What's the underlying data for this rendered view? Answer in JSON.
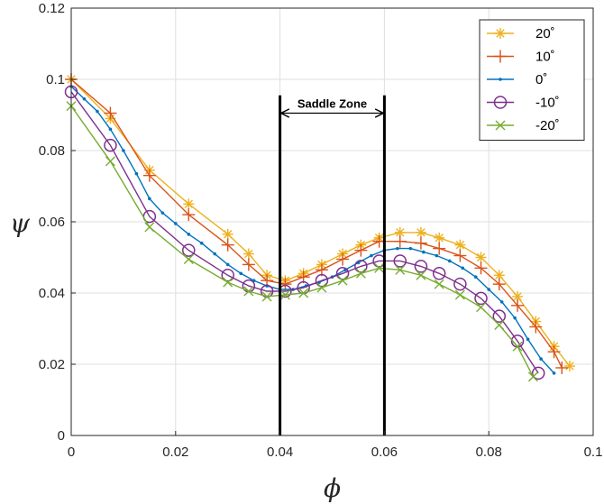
{
  "chart_data": {
    "type": "line",
    "title": "",
    "xlabel": "ϕ",
    "ylabel": "ψ",
    "xlim": [
      0,
      0.1
    ],
    "ylim": [
      0,
      0.12
    ],
    "xticks": [
      0,
      0.02,
      0.04,
      0.06,
      0.08,
      0.1
    ],
    "yticks": [
      0,
      0.02,
      0.04,
      0.06,
      0.08,
      0.1,
      0.12
    ],
    "xtick_labels": [
      "0",
      "0.02",
      "0.04",
      "0.06",
      "0.08",
      "0.1"
    ],
    "ytick_labels": [
      "0",
      "0.02",
      "0.04",
      "0.06",
      "0.08",
      "0.1",
      "0.12"
    ],
    "grid": true,
    "legend_position": "top-right",
    "series": [
      {
        "name": "20˚",
        "color": "#EDB120",
        "marker": "asterisk",
        "x": [
          0,
          0.0075,
          0.015,
          0.0225,
          0.03,
          0.034,
          0.0375,
          0.041,
          0.0445,
          0.048,
          0.052,
          0.0555,
          0.059,
          0.063,
          0.067,
          0.0705,
          0.0745,
          0.0785,
          0.082,
          0.0855,
          0.089,
          0.0925,
          0.0955
        ],
        "y": [
          0.1,
          0.089,
          0.0745,
          0.065,
          0.0565,
          0.051,
          0.045,
          0.0435,
          0.0455,
          0.048,
          0.051,
          0.0535,
          0.0555,
          0.057,
          0.057,
          0.0555,
          0.0535,
          0.05,
          0.045,
          0.039,
          0.032,
          0.025,
          0.0195
        ]
      },
      {
        "name": "10˚",
        "color": "#D95319",
        "marker": "plus",
        "x": [
          0,
          0.0075,
          0.015,
          0.0225,
          0.03,
          0.034,
          0.0375,
          0.041,
          0.0445,
          0.048,
          0.052,
          0.0555,
          0.059,
          0.063,
          0.067,
          0.0705,
          0.0745,
          0.0785,
          0.082,
          0.0855,
          0.089,
          0.0925,
          0.094
        ],
        "y": [
          0.1,
          0.0905,
          0.073,
          0.062,
          0.0535,
          0.048,
          0.0435,
          0.0425,
          0.0445,
          0.0465,
          0.0495,
          0.052,
          0.0545,
          0.0545,
          0.054,
          0.0525,
          0.0505,
          0.047,
          0.0425,
          0.0365,
          0.0305,
          0.0235,
          0.019
        ]
      },
      {
        "name": "0˚",
        "color": "#0072BD",
        "marker": "point",
        "x": [
          0,
          0.0025,
          0.005,
          0.0075,
          0.01,
          0.0125,
          0.015,
          0.0175,
          0.02,
          0.0225,
          0.025,
          0.0275,
          0.03,
          0.0325,
          0.035,
          0.0375,
          0.04,
          0.0425,
          0.045,
          0.0475,
          0.05,
          0.0525,
          0.055,
          0.0575,
          0.06,
          0.0625,
          0.065,
          0.0675,
          0.07,
          0.0725,
          0.075,
          0.0775,
          0.08,
          0.0825,
          0.085,
          0.0875,
          0.09,
          0.0925
        ],
        "y": [
          0.098,
          0.0945,
          0.091,
          0.086,
          0.08,
          0.0735,
          0.0665,
          0.0625,
          0.0595,
          0.0565,
          0.054,
          0.051,
          0.048,
          0.0455,
          0.0435,
          0.042,
          0.041,
          0.041,
          0.042,
          0.043,
          0.0445,
          0.0465,
          0.0485,
          0.0505,
          0.052,
          0.0525,
          0.0525,
          0.0515,
          0.0505,
          0.049,
          0.047,
          0.0445,
          0.041,
          0.0375,
          0.033,
          0.027,
          0.0215,
          0.0175
        ]
      },
      {
        "name": "-10˚",
        "color": "#7E2F8E",
        "marker": "circle",
        "x": [
          0,
          0.0075,
          0.015,
          0.0225,
          0.03,
          0.034,
          0.0375,
          0.041,
          0.0445,
          0.048,
          0.052,
          0.0555,
          0.059,
          0.063,
          0.067,
          0.0705,
          0.0745,
          0.0785,
          0.082,
          0.0855,
          0.0895
        ],
        "y": [
          0.0965,
          0.0815,
          0.0615,
          0.052,
          0.045,
          0.042,
          0.0405,
          0.0405,
          0.0415,
          0.0435,
          0.0455,
          0.0475,
          0.049,
          0.049,
          0.0475,
          0.0455,
          0.0425,
          0.0385,
          0.0335,
          0.0265,
          0.0175
        ]
      },
      {
        "name": "-20˚",
        "color": "#77AC30",
        "marker": "cross",
        "x": [
          0,
          0.0075,
          0.015,
          0.0225,
          0.03,
          0.034,
          0.0375,
          0.041,
          0.0445,
          0.048,
          0.052,
          0.0555,
          0.059,
          0.063,
          0.067,
          0.0705,
          0.0745,
          0.0785,
          0.082,
          0.0855,
          0.0885
        ],
        "y": [
          0.0925,
          0.077,
          0.0585,
          0.0495,
          0.043,
          0.0405,
          0.039,
          0.0395,
          0.04,
          0.0415,
          0.0435,
          0.0455,
          0.047,
          0.0465,
          0.045,
          0.0425,
          0.0395,
          0.036,
          0.031,
          0.025,
          0.0165
        ]
      }
    ],
    "annotations": [
      {
        "text": "Saddle Zone",
        "type": "double-arrow-between-vertical-lines",
        "x_start": 0.04,
        "x_end": 0.06,
        "y_arrow": 0.0905,
        "y_line_top": 0.0955,
        "y_line_bottom": 0.0
      }
    ]
  }
}
